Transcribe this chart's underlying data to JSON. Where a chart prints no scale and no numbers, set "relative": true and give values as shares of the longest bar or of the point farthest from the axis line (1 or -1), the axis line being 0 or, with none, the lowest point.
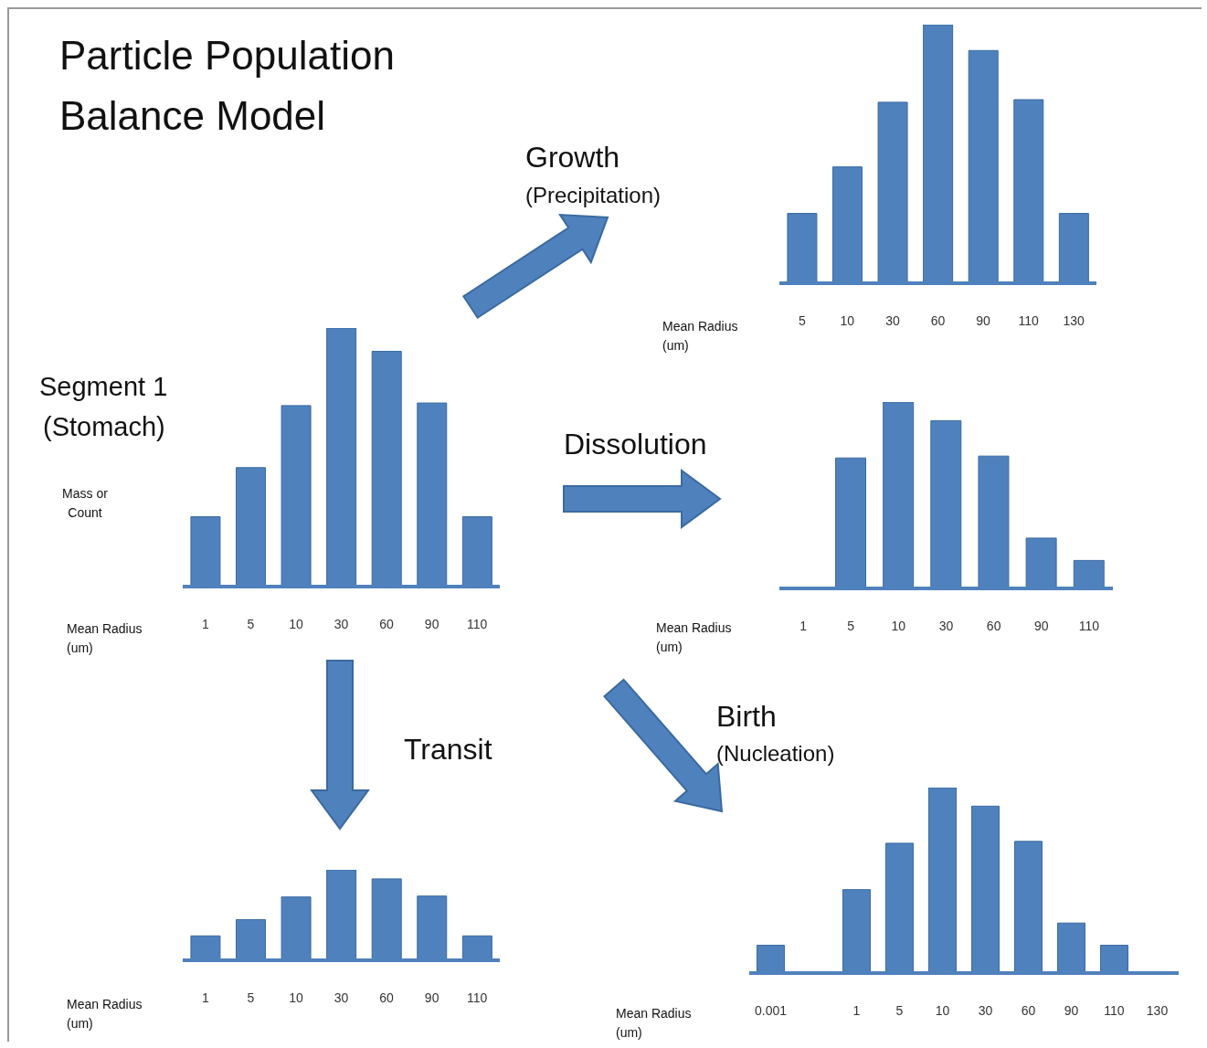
{
  "chart_data": [
    {
      "type": "bar",
      "title": "Particle Population Balance Model",
      "annotations": [
        "Segment 1",
        "(Stomach)"
      ],
      "xlabel": "Mean Radius (um)",
      "ylabel": "Mass or Count",
      "categories": [
        "1",
        "5",
        "10",
        "30",
        "60",
        "90",
        "110"
      ],
      "values": [
        0.27,
        0.46,
        0.7,
        1,
        0.91,
        0.71,
        0.27
      ],
      "color": "#4f81bd",
      "relative": true
    },
    {
      "type": "bar",
      "title": "Growth",
      "subtitle": "(Precipitation)",
      "xlabel": "Mean Radius (um)",
      "categories": [
        "5",
        "10",
        "30",
        "60",
        "90",
        "110",
        "130"
      ],
      "values": [
        0.27,
        0.45,
        0.7,
        1,
        0.9,
        0.71,
        0.27
      ],
      "color": "#4f81bd",
      "relative": true
    },
    {
      "type": "bar",
      "title": "Dissolution",
      "xlabel": "Mean Radius (um)",
      "categories": [
        "1",
        "5",
        "10",
        "30",
        "60",
        "90",
        "110"
      ],
      "values": [
        0,
        0.7,
        1,
        0.9,
        0.71,
        0.27,
        0.15
      ],
      "color": "#4f81bd",
      "relative": true
    },
    {
      "type": "bar",
      "title": "Transit",
      "xlabel": "Mean Radius (um)",
      "categories": [
        "1",
        "5",
        "10",
        "30",
        "60",
        "90",
        "110"
      ],
      "values": [
        0.27,
        0.45,
        0.7,
        1,
        0.9,
        0.71,
        0.27
      ],
      "color": "#4f81bd",
      "relative": true
    },
    {
      "type": "bar",
      "title": "Birth",
      "subtitle": "(Nucleation)",
      "xlabel": "Mean Radius (um)",
      "categories": [
        "0.001",
        null,
        "1",
        "5",
        "10",
        "30",
        "60",
        "90",
        "110",
        "130"
      ],
      "values": [
        0.15,
        null,
        0.45,
        0.7,
        1,
        0.9,
        0.71,
        0.27,
        0.15,
        0
      ],
      "color": "#4f81bd",
      "relative": true
    }
  ]
}
